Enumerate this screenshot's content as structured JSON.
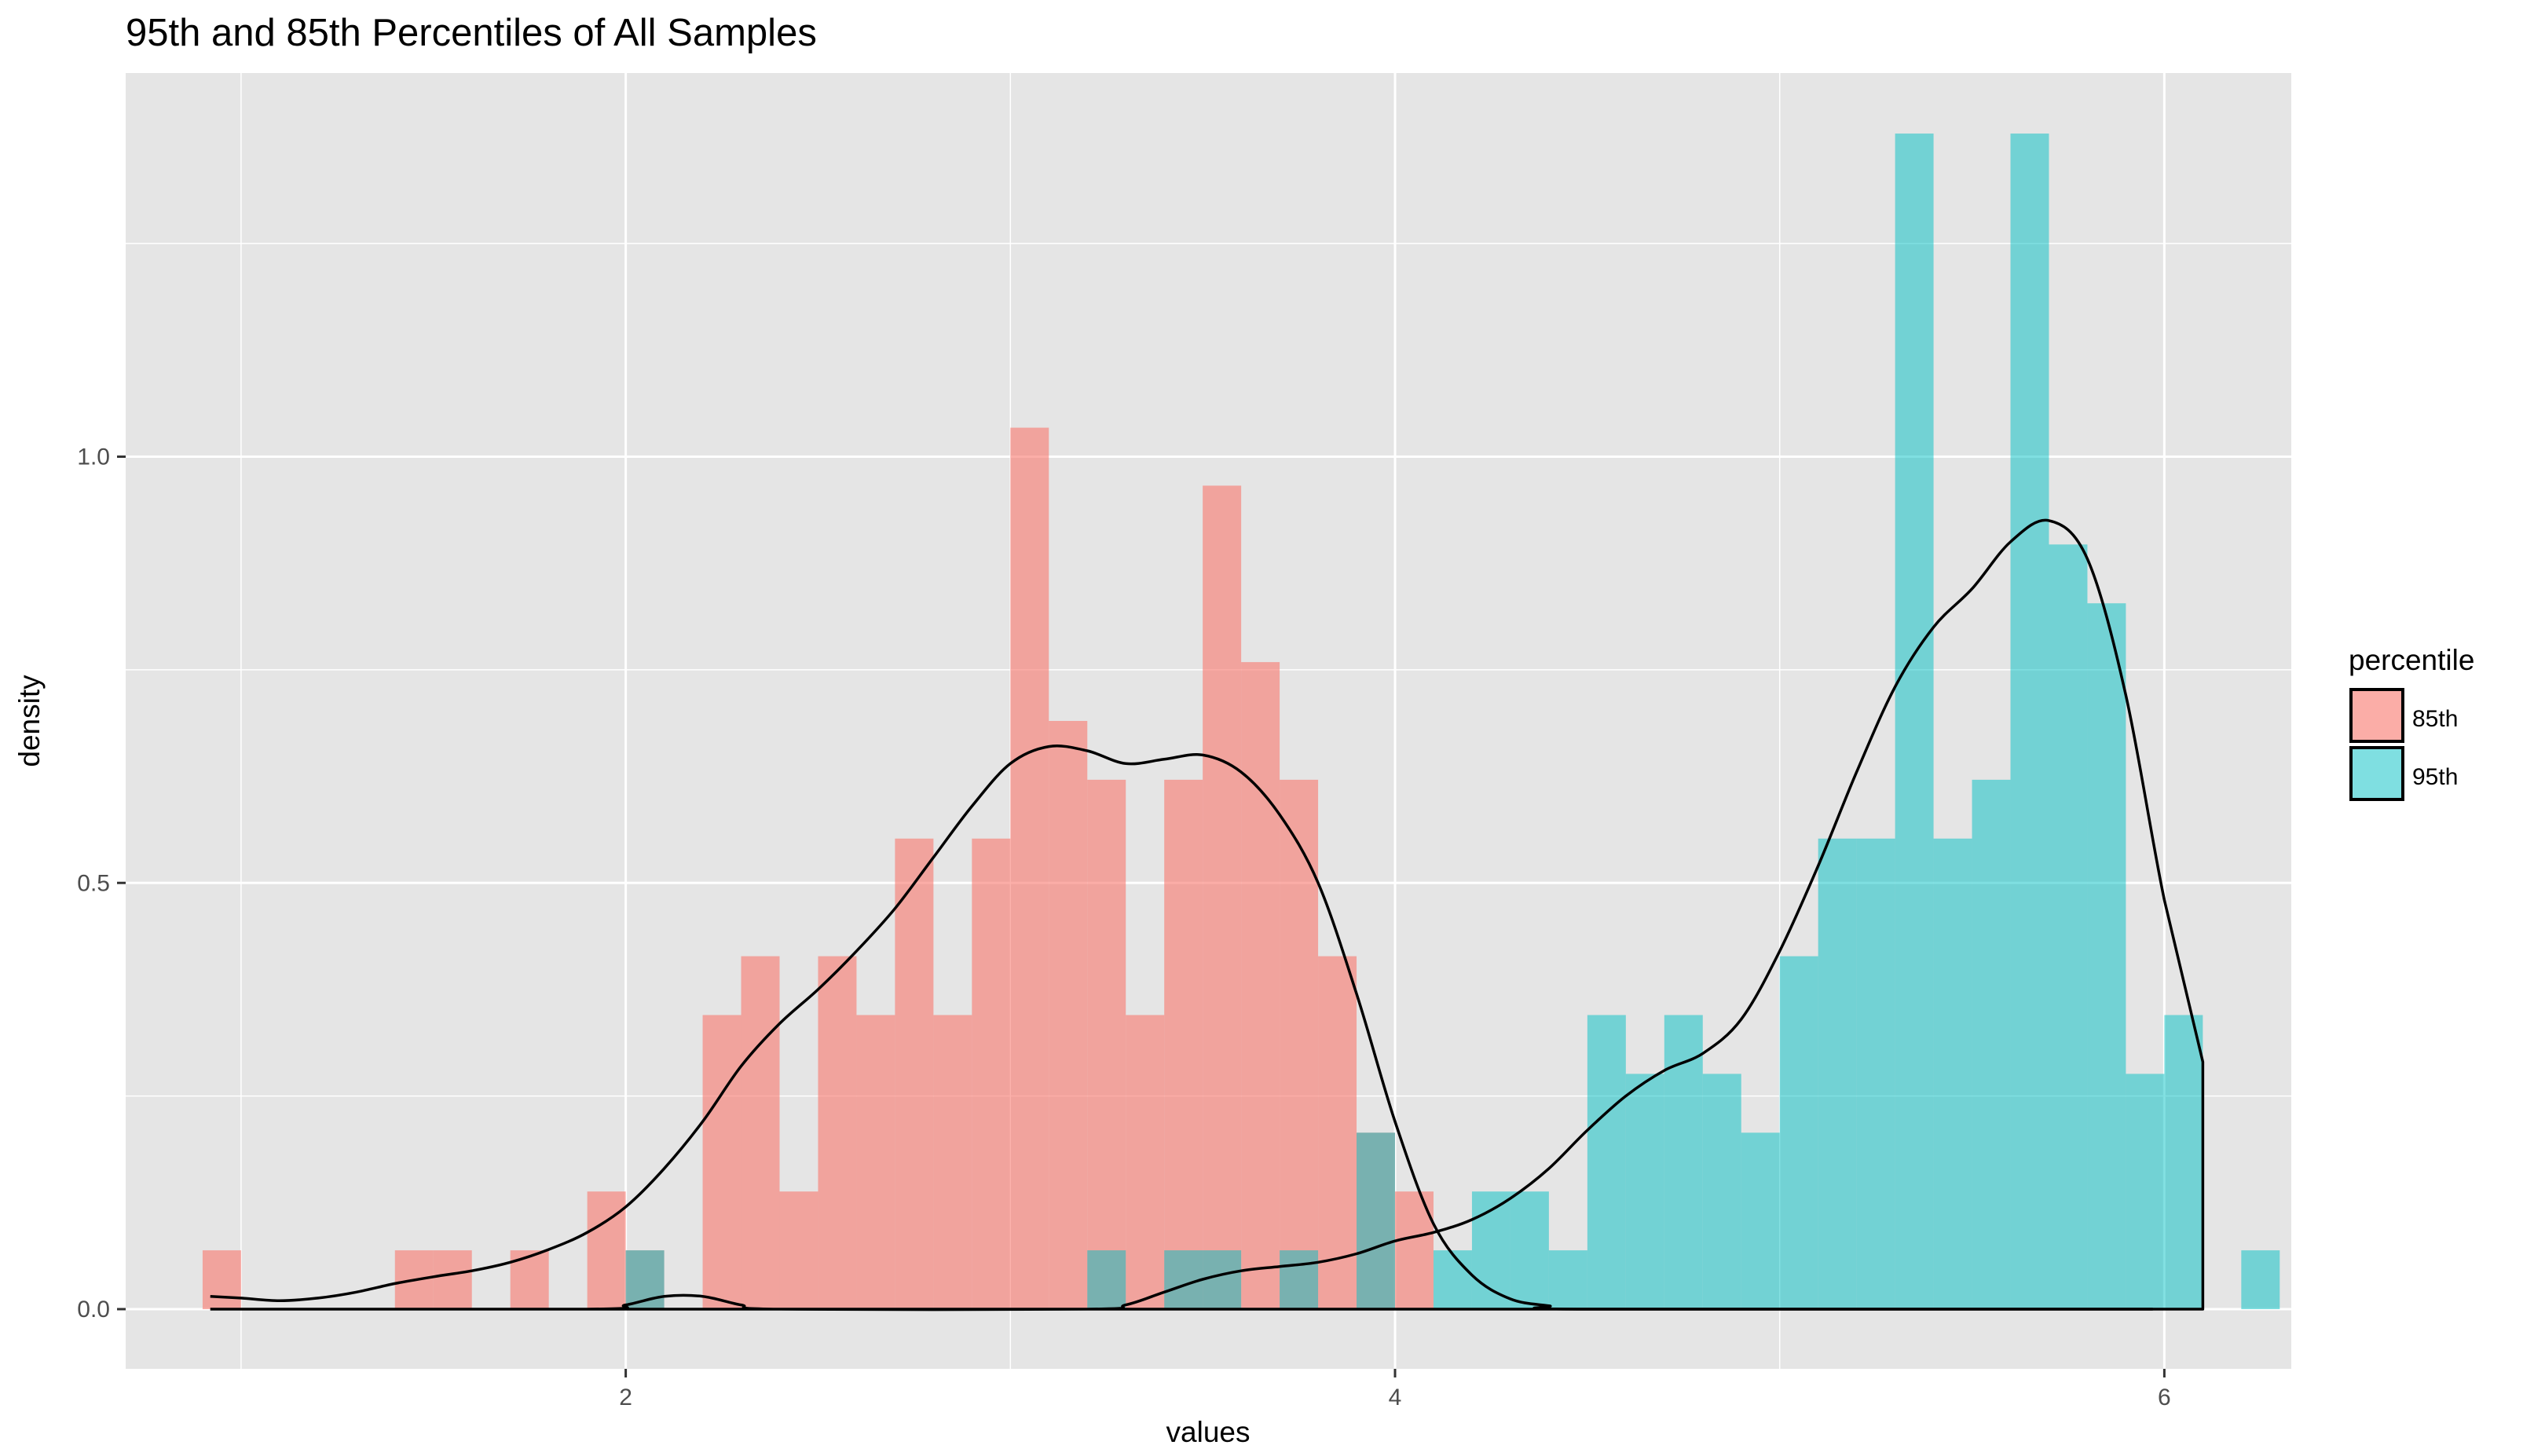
{
  "chart_data": {
    "type": "histogram",
    "title": "95th and 85th Percentiles of All Samples",
    "xlabel": "values",
    "ylabel": "density",
    "xlim": [
      0.7,
      6.33
    ],
    "ylim": [
      -0.07,
      1.45
    ],
    "x_ticks": [
      2,
      4,
      6
    ],
    "x_minor_ticks": [
      1,
      3,
      5
    ],
    "y_ticks": [
      0.0,
      0.5,
      1.0
    ],
    "y_minor_ticks": [
      0.25,
      0.75,
      1.25
    ],
    "bin_width": 0.1,
    "grid": true,
    "legend_title": "percentile",
    "legend_position": "right",
    "colors": {
      "85th": "#F8766D",
      "95th": "#00BFC4",
      "panel": "#E5E5E5",
      "grid": "#FFFFFF",
      "density_line": "#000000"
    },
    "series": [
      {
        "name": "85th",
        "bins": [
          {
            "x": 1.0,
            "y": 0.069
          },
          {
            "x": 1.5,
            "y": 0.069
          },
          {
            "x": 1.6,
            "y": 0.069
          },
          {
            "x": 1.8,
            "y": 0.069
          },
          {
            "x": 2.0,
            "y": 0.138
          },
          {
            "x": 2.1,
            "y": 0.069
          },
          {
            "x": 2.3,
            "y": 0.345
          },
          {
            "x": 2.4,
            "y": 0.414
          },
          {
            "x": 2.5,
            "y": 0.138
          },
          {
            "x": 2.6,
            "y": 0.414
          },
          {
            "x": 2.7,
            "y": 0.345
          },
          {
            "x": 2.8,
            "y": 0.552
          },
          {
            "x": 2.9,
            "y": 0.345
          },
          {
            "x": 3.0,
            "y": 0.552
          },
          {
            "x": 3.1,
            "y": 1.034
          },
          {
            "x": 3.2,
            "y": 0.69
          },
          {
            "x": 3.3,
            "y": 0.621
          },
          {
            "x": 3.4,
            "y": 0.345
          },
          {
            "x": 3.5,
            "y": 0.621
          },
          {
            "x": 3.6,
            "y": 0.966
          },
          {
            "x": 3.7,
            "y": 0.759
          },
          {
            "x": 3.8,
            "y": 0.621
          },
          {
            "x": 3.9,
            "y": 0.414
          },
          {
            "x": 4.0,
            "y": 0.207
          },
          {
            "x": 4.1,
            "y": 0.138
          }
        ],
        "density": [
          [
            0.92,
            0.015
          ],
          [
            1.0,
            0.013
          ],
          [
            1.1,
            0.01
          ],
          [
            1.2,
            0.013
          ],
          [
            1.3,
            0.02
          ],
          [
            1.4,
            0.03
          ],
          [
            1.5,
            0.038
          ],
          [
            1.6,
            0.045
          ],
          [
            1.7,
            0.055
          ],
          [
            1.8,
            0.07
          ],
          [
            1.9,
            0.09
          ],
          [
            2.0,
            0.12
          ],
          [
            2.1,
            0.165
          ],
          [
            2.2,
            0.22
          ],
          [
            2.3,
            0.285
          ],
          [
            2.4,
            0.335
          ],
          [
            2.5,
            0.375
          ],
          [
            2.6,
            0.42
          ],
          [
            2.7,
            0.47
          ],
          [
            2.8,
            0.53
          ],
          [
            2.9,
            0.59
          ],
          [
            3.0,
            0.64
          ],
          [
            3.1,
            0.66
          ],
          [
            3.2,
            0.655
          ],
          [
            3.3,
            0.64
          ],
          [
            3.4,
            0.645
          ],
          [
            3.5,
            0.65
          ],
          [
            3.6,
            0.63
          ],
          [
            3.7,
            0.58
          ],
          [
            3.8,
            0.5
          ],
          [
            3.9,
            0.37
          ],
          [
            4.0,
            0.22
          ],
          [
            4.1,
            0.1
          ],
          [
            4.2,
            0.04
          ],
          [
            4.3,
            0.012
          ],
          [
            4.4,
            0.004
          ],
          [
            4.5,
            0.0
          ],
          [
            5.97,
            0.0
          ]
        ]
      },
      {
        "name": "95th",
        "bins": [
          {
            "x": 2.1,
            "y": 0.069
          },
          {
            "x": 3.3,
            "y": 0.069
          },
          {
            "x": 3.5,
            "y": 0.069
          },
          {
            "x": 3.6,
            "y": 0.069
          },
          {
            "x": 3.8,
            "y": 0.069
          },
          {
            "x": 4.0,
            "y": 0.207
          },
          {
            "x": 4.2,
            "y": 0.069
          },
          {
            "x": 4.3,
            "y": 0.138
          },
          {
            "x": 4.4,
            "y": 0.138
          },
          {
            "x": 4.5,
            "y": 0.069
          },
          {
            "x": 4.6,
            "y": 0.345
          },
          {
            "x": 4.7,
            "y": 0.276
          },
          {
            "x": 4.8,
            "y": 0.345
          },
          {
            "x": 4.9,
            "y": 0.276
          },
          {
            "x": 5.0,
            "y": 0.207
          },
          {
            "x": 5.1,
            "y": 0.414
          },
          {
            "x": 5.2,
            "y": 0.552
          },
          {
            "x": 5.3,
            "y": 0.552
          },
          {
            "x": 5.4,
            "y": 1.379
          },
          {
            "x": 5.5,
            "y": 0.552
          },
          {
            "x": 5.6,
            "y": 0.621
          },
          {
            "x": 5.7,
            "y": 1.379
          },
          {
            "x": 5.8,
            "y": 0.897
          },
          {
            "x": 5.9,
            "y": 0.828
          },
          {
            "x": 6.0,
            "y": 0.276
          },
          {
            "x": 6.1,
            "y": 0.345
          },
          {
            "x": 6.3,
            "y": 0.069
          }
        ],
        "density": [
          [
            0.92,
            0.0
          ],
          [
            1.9,
            0.0
          ],
          [
            2.0,
            0.005
          ],
          [
            2.1,
            0.015
          ],
          [
            2.2,
            0.015
          ],
          [
            2.3,
            0.005
          ],
          [
            2.4,
            0.0
          ],
          [
            3.2,
            0.0
          ],
          [
            3.3,
            0.005
          ],
          [
            3.4,
            0.02
          ],
          [
            3.5,
            0.035
          ],
          [
            3.6,
            0.045
          ],
          [
            3.7,
            0.05
          ],
          [
            3.8,
            0.055
          ],
          [
            3.9,
            0.065
          ],
          [
            4.0,
            0.08
          ],
          [
            4.1,
            0.09
          ],
          [
            4.2,
            0.105
          ],
          [
            4.3,
            0.13
          ],
          [
            4.4,
            0.165
          ],
          [
            4.5,
            0.21
          ],
          [
            4.6,
            0.25
          ],
          [
            4.7,
            0.28
          ],
          [
            4.8,
            0.3
          ],
          [
            4.9,
            0.34
          ],
          [
            5.0,
            0.42
          ],
          [
            5.1,
            0.52
          ],
          [
            5.2,
            0.63
          ],
          [
            5.3,
            0.73
          ],
          [
            5.4,
            0.8
          ],
          [
            5.5,
            0.845
          ],
          [
            5.6,
            0.9
          ],
          [
            5.7,
            0.925
          ],
          [
            5.8,
            0.88
          ],
          [
            5.9,
            0.72
          ],
          [
            6.0,
            0.48
          ],
          [
            6.1,
            0.29
          ],
          [
            6.1,
            0.19
          ],
          [
            6.1,
            0.0
          ],
          [
            0.92,
            0.0
          ]
        ]
      }
    ]
  }
}
